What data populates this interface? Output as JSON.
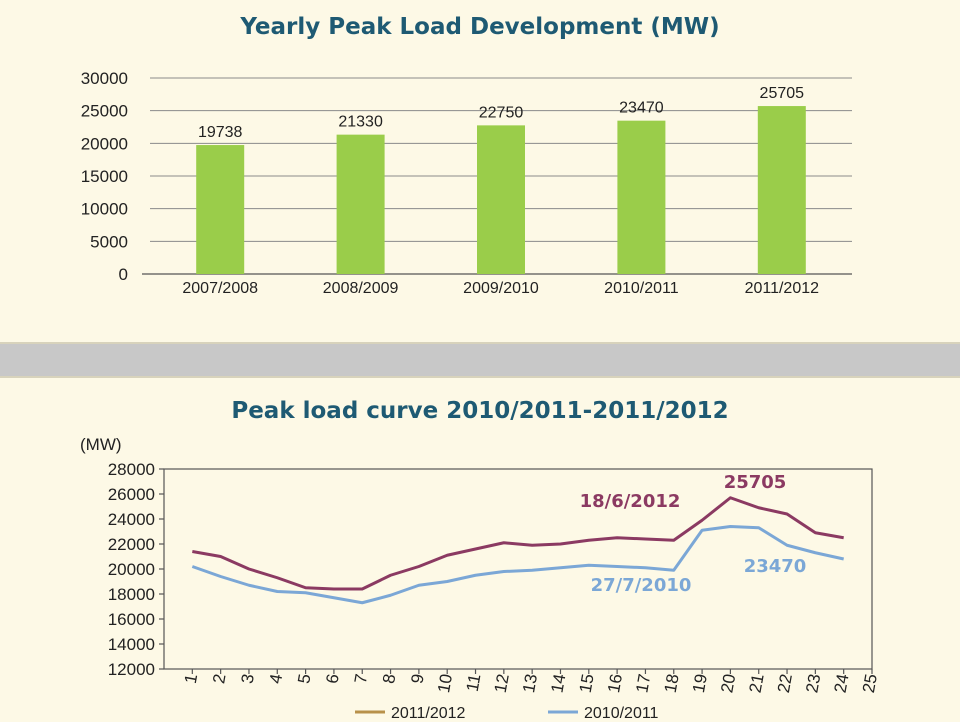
{
  "chart_data": [
    {
      "type": "bar",
      "title": "Yearly Peak Load Development (MW)",
      "categories": [
        "2007/2008",
        "2008/2009",
        "2009/2010",
        "2010/2011",
        "2011/2012"
      ],
      "values": [
        19738,
        21330,
        22750,
        23470,
        25705
      ],
      "value_labels": [
        "19738",
        "21330",
        "22750",
        "23470",
        "25705"
      ],
      "yticks": [
        "0",
        "5000",
        "10000",
        "15000",
        "20000",
        "25000",
        "30000"
      ],
      "ylim": [
        0,
        30000
      ],
      "grid": true,
      "colors": {
        "bar": "#9acd4a"
      }
    },
    {
      "type": "line",
      "title": "Peak load curve 2010/2011-2011/2012",
      "ylabel": "(MW)",
      "x": [
        1,
        2,
        3,
        4,
        5,
        6,
        7,
        8,
        9,
        10,
        11,
        12,
        13,
        14,
        15,
        16,
        17,
        18,
        19,
        20,
        21,
        22,
        23,
        24
      ],
      "xticks": [
        "1",
        "2",
        "3",
        "4",
        "5",
        "6",
        "7",
        "8",
        "9",
        "10",
        "11",
        "12",
        "13",
        "14",
        "15",
        "16",
        "17",
        "18",
        "19",
        "20",
        "21",
        "22",
        "23",
        "24",
        "25"
      ],
      "yticks": [
        "12000",
        "14000",
        "16000",
        "18000",
        "20000",
        "22000",
        "24000",
        "26000",
        "28000"
      ],
      "ylim": [
        12000,
        28000
      ],
      "xlim": [
        0,
        25
      ],
      "legend_position": "bottom",
      "series": [
        {
          "name": "2011/2012",
          "color": "#8b3a62",
          "legend_color": "#b8914a",
          "values": [
            21400,
            21000,
            20000,
            19300,
            18500,
            18400,
            18400,
            19500,
            20200,
            21100,
            21600,
            22100,
            21900,
            22000,
            22300,
            22500,
            22400,
            22300,
            23900,
            25700,
            24900,
            24400,
            22900,
            22500
          ]
        },
        {
          "name": "2010/2011",
          "color": "#7ba7d6",
          "legend_color": "#7ba7d6",
          "values": [
            20200,
            19400,
            18700,
            18200,
            18100,
            17700,
            17300,
            17900,
            18700,
            19000,
            19500,
            19800,
            19900,
            20100,
            20300,
            20200,
            20100,
            19900,
            23100,
            23400,
            23300,
            21900,
            21300,
            20800
          ]
        }
      ],
      "annotations": [
        {
          "text": "18/6/2012",
          "series": "2011/2012"
        },
        {
          "text": "25705",
          "series": "2011/2012"
        },
        {
          "text": "27/7/2010",
          "series": "2010/2011"
        },
        {
          "text": "23470",
          "series": "2010/2011"
        }
      ]
    }
  ]
}
